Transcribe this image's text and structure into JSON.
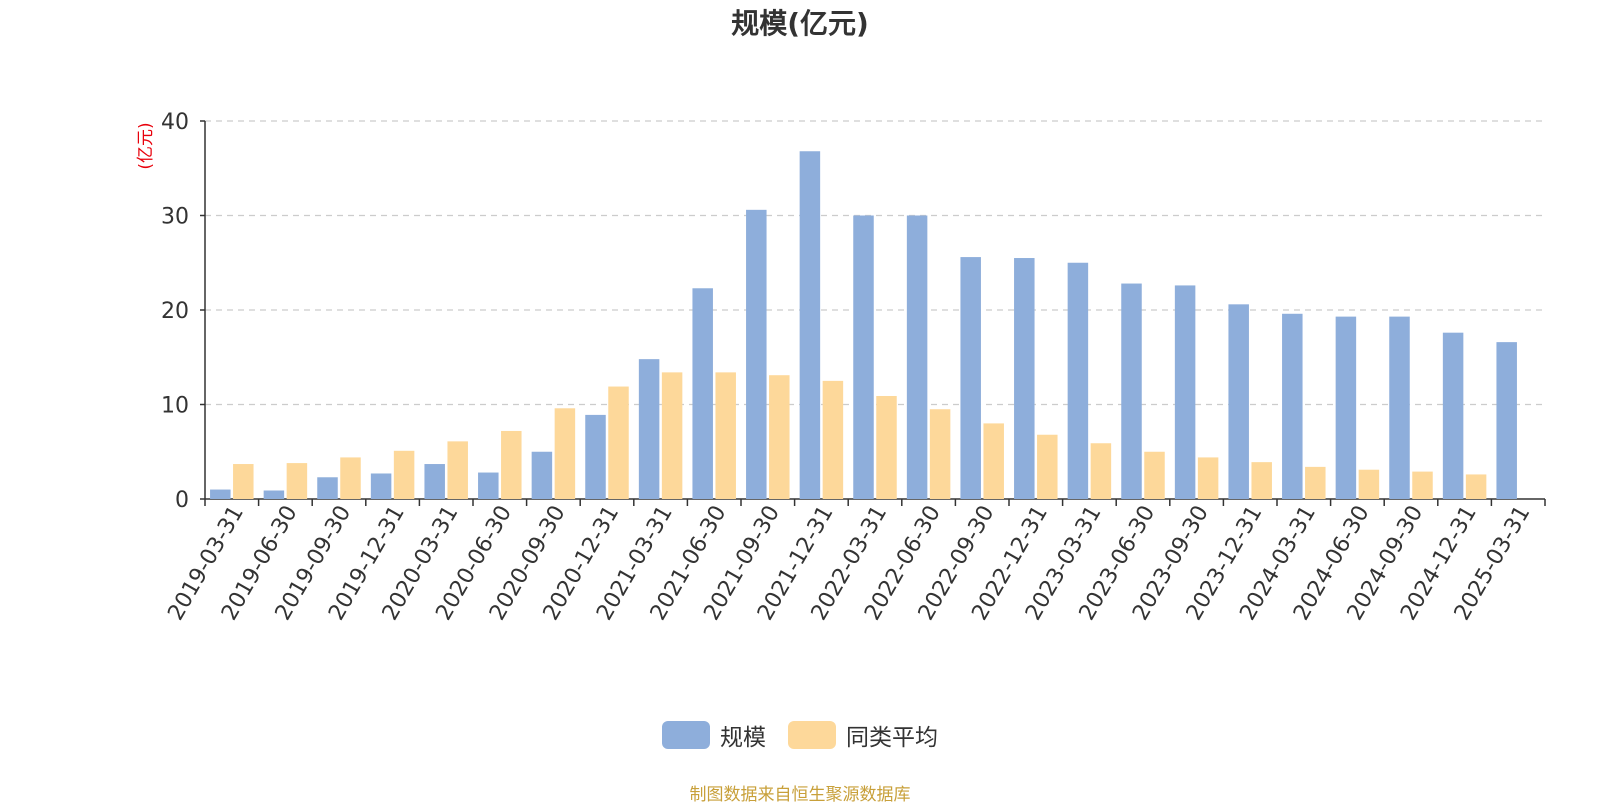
{
  "chart_data": {
    "type": "bar",
    "title": "规模(亿元)",
    "ylabel": "(亿元)",
    "ylim": [
      0,
      40
    ],
    "yticks": [
      0,
      10,
      20,
      30,
      40
    ],
    "grid": true,
    "legend_position": "bottom",
    "categories": [
      "2019-03-31",
      "2019-06-30",
      "2019-09-30",
      "2019-12-31",
      "2020-03-31",
      "2020-06-30",
      "2020-09-30",
      "2020-12-31",
      "2021-03-31",
      "2021-06-30",
      "2021-09-30",
      "2021-12-31",
      "2022-03-31",
      "2022-06-30",
      "2022-09-30",
      "2022-12-31",
      "2023-03-31",
      "2023-06-30",
      "2023-09-30",
      "2023-12-31",
      "2024-03-31",
      "2024-06-30",
      "2024-09-30",
      "2024-12-31",
      "2025-03-31"
    ],
    "series": [
      {
        "name": "规模",
        "color": "#8eaedb",
        "values": [
          1.0,
          0.9,
          2.3,
          2.7,
          3.7,
          2.8,
          5.0,
          8.9,
          14.8,
          22.3,
          30.6,
          36.8,
          30.0,
          30.0,
          25.6,
          25.5,
          25.0,
          22.8,
          22.6,
          20.6,
          19.6,
          19.3,
          19.3,
          17.6,
          16.6
        ]
      },
      {
        "name": "同类平均",
        "color": "#fdd89a",
        "values": [
          3.7,
          3.8,
          4.4,
          5.1,
          6.1,
          7.2,
          9.6,
          11.9,
          13.4,
          13.4,
          13.1,
          12.5,
          10.9,
          9.5,
          8.0,
          6.8,
          5.9,
          5.0,
          4.4,
          3.9,
          3.4,
          3.1,
          2.9,
          2.6,
          null
        ]
      }
    ]
  },
  "source_note": "制图数据来自恒生聚源数据库"
}
